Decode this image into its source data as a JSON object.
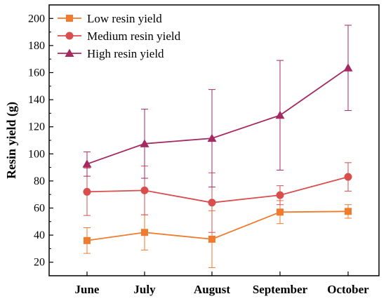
{
  "chart_data": {
    "type": "line",
    "ylabel": "Resin yield (g)",
    "xlabel": "",
    "categories": [
      "June",
      "July",
      "August",
      "September",
      "October"
    ],
    "ylim": [
      10,
      210
    ],
    "yticks": [
      20,
      40,
      60,
      80,
      100,
      120,
      140,
      160,
      180,
      200
    ],
    "grid": false,
    "legend_position": "top-left",
    "series": [
      {
        "name": "Low resin yield",
        "color": "#f07a2d",
        "marker": "square",
        "values": [
          36,
          42,
          37,
          57,
          57.5
        ],
        "errors": [
          9.5,
          13,
          21,
          8.5,
          5
        ]
      },
      {
        "name": "Medium resin yield",
        "color": "#d94d4d",
        "marker": "circle",
        "values": [
          72,
          73,
          64,
          69.5,
          83
        ],
        "errors": [
          17.5,
          18,
          22,
          7,
          10.5
        ]
      },
      {
        "name": "High resin yield",
        "color": "#a52a62",
        "marker": "triangle",
        "values": [
          92.5,
          107.5,
          111.5,
          128.5,
          163.5
        ],
        "errors": [
          9,
          25.5,
          36,
          40.5,
          31.5
        ]
      }
    ]
  }
}
